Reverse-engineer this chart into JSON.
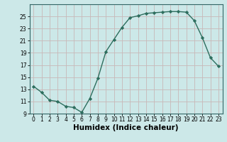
{
  "x": [
    0,
    1,
    2,
    3,
    4,
    5,
    6,
    7,
    8,
    9,
    10,
    11,
    12,
    13,
    14,
    15,
    16,
    17,
    18,
    19,
    20,
    21,
    22,
    23
  ],
  "y": [
    13.5,
    12.5,
    11.2,
    11.0,
    10.2,
    10.0,
    9.2,
    11.5,
    14.8,
    19.2,
    21.2,
    23.2,
    24.8,
    25.1,
    25.5,
    25.6,
    25.7,
    25.8,
    25.8,
    25.7,
    24.3,
    21.5,
    18.2,
    16.8
  ],
  "line_color": "#2d6e5e",
  "marker": "D",
  "marker_size": 2.2,
  "bg_color": "#cce8e8",
  "grid_color": "#aad4d4",
  "xlabel": "Humidex (Indice chaleur)",
  "ylim": [
    9,
    27
  ],
  "xlim": [
    -0.5,
    23.5
  ],
  "yticks": [
    9,
    11,
    13,
    15,
    17,
    19,
    21,
    23,
    25
  ],
  "xticks": [
    0,
    1,
    2,
    3,
    4,
    5,
    6,
    7,
    8,
    9,
    10,
    11,
    12,
    13,
    14,
    15,
    16,
    17,
    18,
    19,
    20,
    21,
    22,
    23
  ],
  "tick_fontsize": 5.5,
  "xlabel_fontsize": 7.5,
  "line_width": 1.0,
  "spine_color": "#336666"
}
